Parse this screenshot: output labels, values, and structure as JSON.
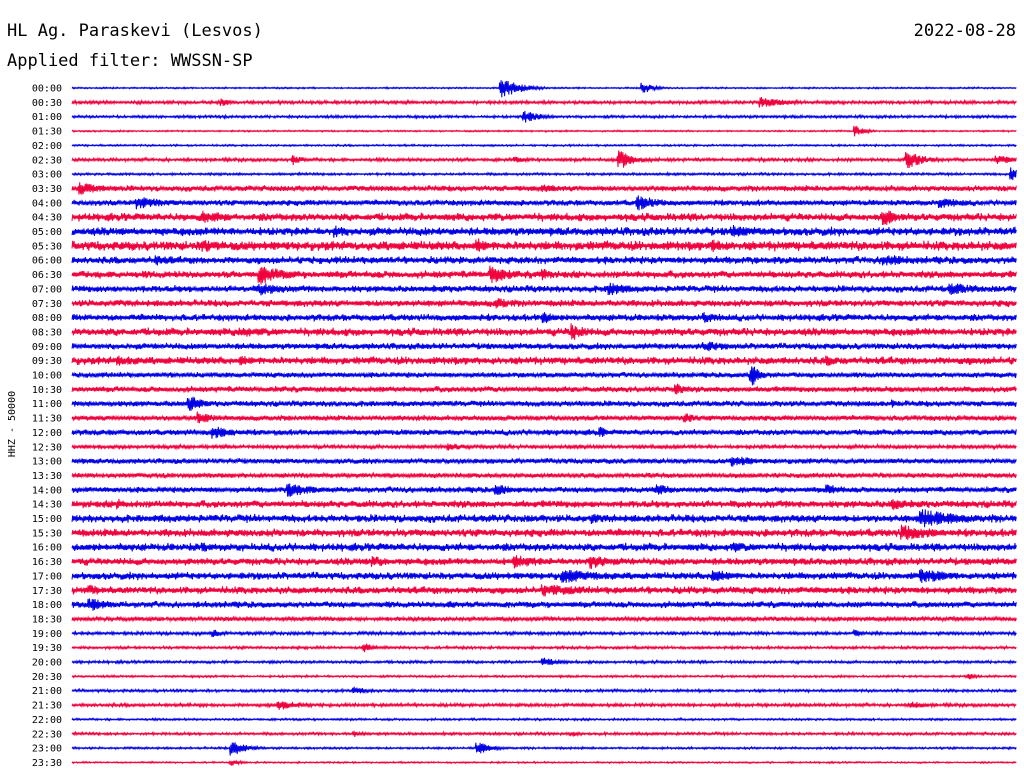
{
  "header": {
    "station": "HL Ag. Paraskevi (Lesvos)",
    "date": "2022-08-28",
    "filter": "Applied filter: WWSSN-SP"
  },
  "chart_data": {
    "type": "line",
    "title": "HL Ag. Paraskevi (Lesvos)",
    "subtitle": "Applied filter: WWSSN-SP",
    "date": "2022-08-28",
    "ylabel": "HHZ - 50000",
    "xlabel": "",
    "grid": false,
    "legend": "none",
    "colors": [
      "#0000e6",
      "#f0003c"
    ],
    "series": [
      {
        "label": "00:00",
        "noise": 0.06,
        "events": [
          {
            "pos": 0.455,
            "amp": 1.0,
            "dur": 0.02
          },
          {
            "pos": 0.605,
            "amp": 0.5,
            "dur": 0.012
          }
        ]
      },
      {
        "label": "00:30",
        "noise": 0.12,
        "events": [
          {
            "pos": 0.16,
            "amp": 0.35,
            "dur": 0.01
          },
          {
            "pos": 0.73,
            "amp": 0.5,
            "dur": 0.03
          }
        ]
      },
      {
        "label": "01:00",
        "noise": 0.1,
        "events": [
          {
            "pos": 0.48,
            "amp": 0.55,
            "dur": 0.02
          }
        ]
      },
      {
        "label": "01:30",
        "noise": 0.06,
        "events": [
          {
            "pos": 0.83,
            "amp": 0.5,
            "dur": 0.01
          }
        ]
      },
      {
        "label": "02:00",
        "noise": 0.07,
        "events": []
      },
      {
        "label": "02:30",
        "noise": 0.12,
        "events": [
          {
            "pos": 0.235,
            "amp": 0.5,
            "dur": 0.01
          },
          {
            "pos": 0.47,
            "amp": 0.3,
            "dur": 0.015
          },
          {
            "pos": 0.58,
            "amp": 0.9,
            "dur": 0.018
          },
          {
            "pos": 0.885,
            "amp": 0.8,
            "dur": 0.02
          },
          {
            "pos": 0.98,
            "amp": 0.4,
            "dur": 0.03
          }
        ]
      },
      {
        "label": "03:00",
        "noise": 0.09,
        "events": [
          {
            "pos": 0.995,
            "amp": 0.7,
            "dur": 0.02
          }
        ]
      },
      {
        "label": "03:30",
        "noise": 0.22,
        "events": [
          {
            "pos": 0.01,
            "amp": 0.6,
            "dur": 0.03
          },
          {
            "pos": 0.5,
            "amp": 0.4,
            "dur": 0.03
          }
        ]
      },
      {
        "label": "04:00",
        "noise": 0.22,
        "events": [
          {
            "pos": 0.07,
            "amp": 0.6,
            "dur": 0.04
          },
          {
            "pos": 0.6,
            "amp": 0.7,
            "dur": 0.03
          },
          {
            "pos": 0.92,
            "amp": 0.5,
            "dur": 0.04
          }
        ]
      },
      {
        "label": "04:30",
        "noise": 0.3,
        "events": [
          {
            "pos": 0.14,
            "amp": 0.6,
            "dur": 0.04
          },
          {
            "pos": 0.86,
            "amp": 0.8,
            "dur": 0.02
          }
        ]
      },
      {
        "label": "05:00",
        "noise": 0.32,
        "events": [
          {
            "pos": 0.28,
            "amp": 0.6,
            "dur": 0.02
          },
          {
            "pos": 0.7,
            "amp": 0.6,
            "dur": 0.03
          }
        ]
      },
      {
        "label": "05:30",
        "noise": 0.36,
        "events": [
          {
            "pos": 0.14,
            "amp": 0.6,
            "dur": 0.04
          },
          {
            "pos": 0.43,
            "amp": 0.7,
            "dur": 0.015
          },
          {
            "pos": 0.68,
            "amp": 0.6,
            "dur": 0.03
          }
        ]
      },
      {
        "label": "06:00",
        "noise": 0.28,
        "events": [
          {
            "pos": 0.09,
            "amp": 0.5,
            "dur": 0.03
          },
          {
            "pos": 0.86,
            "amp": 0.6,
            "dur": 0.04
          }
        ]
      },
      {
        "label": "06:30",
        "noise": 0.28,
        "events": [
          {
            "pos": 0.2,
            "amp": 0.95,
            "dur": 0.03
          },
          {
            "pos": 0.445,
            "amp": 1.0,
            "dur": 0.02
          },
          {
            "pos": 0.5,
            "amp": 0.6,
            "dur": 0.01
          }
        ]
      },
      {
        "label": "07:00",
        "noise": 0.26,
        "events": [
          {
            "pos": 0.2,
            "amp": 0.6,
            "dur": 0.04
          },
          {
            "pos": 0.57,
            "amp": 0.6,
            "dur": 0.03
          },
          {
            "pos": 0.93,
            "amp": 0.6,
            "dur": 0.04
          }
        ]
      },
      {
        "label": "07:30",
        "noise": 0.26,
        "events": [
          {
            "pos": 0.45,
            "amp": 0.5,
            "dur": 0.03
          }
        ]
      },
      {
        "label": "08:00",
        "noise": 0.26,
        "events": [
          {
            "pos": 0.5,
            "amp": 0.6,
            "dur": 0.02
          },
          {
            "pos": 0.67,
            "amp": 0.5,
            "dur": 0.03
          }
        ]
      },
      {
        "label": "08:30",
        "noise": 0.3,
        "events": [
          {
            "pos": 0.18,
            "amp": 0.5,
            "dur": 0.04
          },
          {
            "pos": 0.53,
            "amp": 0.8,
            "dur": 0.02
          }
        ]
      },
      {
        "label": "09:00",
        "noise": 0.24,
        "events": [
          {
            "pos": 0.67,
            "amp": 0.5,
            "dur": 0.04
          }
        ]
      },
      {
        "label": "09:30",
        "noise": 0.3,
        "events": [
          {
            "pos": 0.05,
            "amp": 0.5,
            "dur": 0.04
          },
          {
            "pos": 0.18,
            "amp": 0.5,
            "dur": 0.02
          },
          {
            "pos": 0.8,
            "amp": 0.5,
            "dur": 0.02
          }
        ]
      },
      {
        "label": "10:00",
        "noise": 0.2,
        "events": [
          {
            "pos": 0.72,
            "amp": 1.0,
            "dur": 0.012
          }
        ]
      },
      {
        "label": "10:30",
        "noise": 0.22,
        "events": [
          {
            "pos": 0.64,
            "amp": 0.6,
            "dur": 0.01
          }
        ]
      },
      {
        "label": "11:00",
        "noise": 0.22,
        "events": [
          {
            "pos": 0.125,
            "amp": 0.8,
            "dur": 0.015
          },
          {
            "pos": 0.87,
            "amp": 0.4,
            "dur": 0.01
          }
        ]
      },
      {
        "label": "11:30",
        "noise": 0.2,
        "events": [
          {
            "pos": 0.135,
            "amp": 0.6,
            "dur": 0.02
          },
          {
            "pos": 0.65,
            "amp": 0.5,
            "dur": 0.015
          }
        ]
      },
      {
        "label": "12:00",
        "noise": 0.22,
        "events": [
          {
            "pos": 0.15,
            "amp": 0.6,
            "dur": 0.03
          },
          {
            "pos": 0.56,
            "amp": 0.5,
            "dur": 0.01
          }
        ]
      },
      {
        "label": "12:30",
        "noise": 0.14,
        "events": [
          {
            "pos": 0.4,
            "amp": 0.4,
            "dur": 0.02
          }
        ]
      },
      {
        "label": "13:00",
        "noise": 0.2,
        "events": [
          {
            "pos": 0.7,
            "amp": 0.5,
            "dur": 0.04
          }
        ]
      },
      {
        "label": "13:30",
        "noise": 0.18,
        "events": []
      },
      {
        "label": "14:00",
        "noise": 0.22,
        "events": [
          {
            "pos": 0.23,
            "amp": 0.7,
            "dur": 0.03
          },
          {
            "pos": 0.45,
            "amp": 0.5,
            "dur": 0.03
          },
          {
            "pos": 0.62,
            "amp": 0.5,
            "dur": 0.03
          },
          {
            "pos": 0.8,
            "amp": 0.5,
            "dur": 0.03
          }
        ]
      },
      {
        "label": "14:30",
        "noise": 0.28,
        "events": [
          {
            "pos": 0.05,
            "amp": 0.5,
            "dur": 0.02
          },
          {
            "pos": 0.87,
            "amp": 0.6,
            "dur": 0.02
          }
        ]
      },
      {
        "label": "15:00",
        "noise": 0.3,
        "events": [
          {
            "pos": 0.55,
            "amp": 0.5,
            "dur": 0.02
          },
          {
            "pos": 0.9,
            "amp": 0.9,
            "dur": 0.05
          }
        ]
      },
      {
        "label": "15:30",
        "noise": 0.3,
        "events": [
          {
            "pos": 0.88,
            "amp": 0.8,
            "dur": 0.04
          }
        ]
      },
      {
        "label": "16:00",
        "noise": 0.3,
        "events": [
          {
            "pos": 0.14,
            "amp": 0.5,
            "dur": 0.01
          },
          {
            "pos": 0.7,
            "amp": 0.5,
            "dur": 0.03
          }
        ]
      },
      {
        "label": "16:30",
        "noise": 0.28,
        "events": [
          {
            "pos": 0.32,
            "amp": 0.5,
            "dur": 0.03
          },
          {
            "pos": 0.47,
            "amp": 0.7,
            "dur": 0.03
          },
          {
            "pos": 0.55,
            "amp": 0.7,
            "dur": 0.03
          }
        ]
      },
      {
        "label": "17:00",
        "noise": 0.28,
        "events": [
          {
            "pos": 0.52,
            "amp": 0.7,
            "dur": 0.06
          },
          {
            "pos": 0.68,
            "amp": 0.6,
            "dur": 0.03
          },
          {
            "pos": 0.9,
            "amp": 0.7,
            "dur": 0.04
          }
        ]
      },
      {
        "label": "17:30",
        "noise": 0.28,
        "events": [
          {
            "pos": 0.02,
            "amp": 0.5,
            "dur": 0.02
          },
          {
            "pos": 0.5,
            "amp": 0.6,
            "dur": 0.06
          }
        ]
      },
      {
        "label": "18:00",
        "noise": 0.24,
        "events": [
          {
            "pos": 0.02,
            "amp": 0.6,
            "dur": 0.03
          },
          {
            "pos": 0.4,
            "amp": 0.4,
            "dur": 0.02
          }
        ]
      },
      {
        "label": "18:30",
        "noise": 0.16,
        "events": []
      },
      {
        "label": "19:00",
        "noise": 0.12,
        "events": [
          {
            "pos": 0.15,
            "amp": 0.4,
            "dur": 0.01
          },
          {
            "pos": 0.83,
            "amp": 0.4,
            "dur": 0.01
          }
        ]
      },
      {
        "label": "19:30",
        "noise": 0.1,
        "events": [
          {
            "pos": 0.31,
            "amp": 0.5,
            "dur": 0.01
          }
        ]
      },
      {
        "label": "20:00",
        "noise": 0.1,
        "events": [
          {
            "pos": 0.5,
            "amp": 0.4,
            "dur": 0.02
          }
        ]
      },
      {
        "label": "20:30",
        "noise": 0.08,
        "events": [
          {
            "pos": 0.95,
            "amp": 0.3,
            "dur": 0.01
          }
        ]
      },
      {
        "label": "21:00",
        "noise": 0.1,
        "events": [
          {
            "pos": 0.3,
            "amp": 0.4,
            "dur": 0.015
          }
        ]
      },
      {
        "label": "21:30",
        "noise": 0.12,
        "events": [
          {
            "pos": 0.22,
            "amp": 0.45,
            "dur": 0.03
          },
          {
            "pos": 0.89,
            "amp": 0.35,
            "dur": 0.02
          }
        ]
      },
      {
        "label": "22:00",
        "noise": 0.08,
        "events": []
      },
      {
        "label": "22:30",
        "noise": 0.1,
        "events": [
          {
            "pos": 0.3,
            "amp": 0.3,
            "dur": 0.01
          },
          {
            "pos": 0.53,
            "amp": 0.3,
            "dur": 0.01
          }
        ]
      },
      {
        "label": "23:00",
        "noise": 0.08,
        "events": [
          {
            "pos": 0.17,
            "amp": 0.8,
            "dur": 0.015
          },
          {
            "pos": 0.43,
            "amp": 0.6,
            "dur": 0.015
          }
        ]
      },
      {
        "label": "23:30",
        "noise": 0.06,
        "events": [
          {
            "pos": 0.17,
            "amp": 0.3,
            "dur": 0.01
          }
        ]
      }
    ]
  }
}
